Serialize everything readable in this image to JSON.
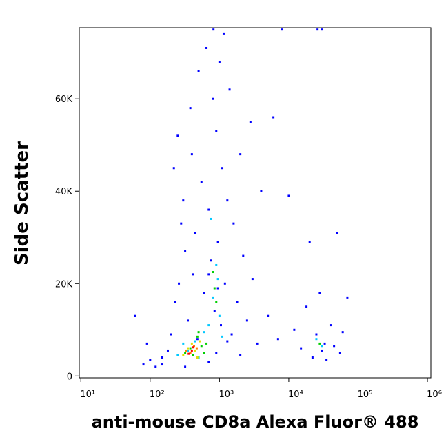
{
  "chart_data": {
    "type": "scatter",
    "x_label": "anti-mouse CD8a Alexa Fluor® 488",
    "y_label": "Side Scatter",
    "xscale": "log",
    "xlim": [
      9.5,
      1120000
    ],
    "xticks": [
      {
        "value": 10,
        "label": "10¹"
      },
      {
        "value": 100,
        "label": "10²"
      },
      {
        "value": 1000,
        "label": "10³"
      },
      {
        "value": 10000,
        "label": "10⁴"
      },
      {
        "value": 100000,
        "label": "10⁵"
      },
      {
        "value": 1000000,
        "label": "10⁶"
      }
    ],
    "ylim": [
      -400,
      75400
    ],
    "yticks": [
      0,
      {
        "value": 20000,
        "label": "20K"
      },
      {
        "value": 40000,
        "label": "40K"
      },
      {
        "value": 60000,
        "label": "60K"
      }
    ],
    "series": [
      {
        "color": "#0000ff",
        "x": [
          80,
          100,
          120,
          60,
          90,
          150,
          200,
          220,
          250,
          230,
          260,
          280,
          300,
          320,
          350,
          380,
          400,
          420,
          450,
          480,
          500,
          550,
          600,
          650,
          700,
          750,
          800,
          820,
          850,
          900,
          950,
          1000,
          1050,
          1100,
          1150,
          1200,
          1300,
          1400,
          1500,
          1600,
          1800,
          2000,
          2200,
          2500,
          2800,
          3000,
          3500,
          4000,
          5000,
          6000,
          7000,
          8000,
          10000,
          12000,
          15000,
          18000,
          20000,
          22000,
          25000,
          28000,
          30000,
          33000,
          35000,
          40000,
          45000,
          50000,
          55000,
          60000,
          70000,
          26000,
          30000,
          150,
          180,
          320,
          700,
          900,
          1300,
          2000,
          700,
          950
        ],
        "y": [
          2500,
          3500,
          2000,
          13000,
          7000,
          4000,
          9000,
          45000,
          52000,
          16000,
          20000,
          33000,
          38000,
          27000,
          12000,
          58000,
          48000,
          22000,
          31000,
          8000,
          66000,
          42000,
          18000,
          71000,
          36000,
          25000,
          60000,
          75000,
          14000,
          53000,
          29000,
          68000,
          11000,
          45000,
          74000,
          20000,
          38000,
          62000,
          9000,
          33000,
          16000,
          48000,
          26000,
          12000,
          55000,
          21000,
          7000,
          40000,
          13000,
          56000,
          8000,
          75000,
          39000,
          10000,
          6000,
          15000,
          29000,
          4000,
          9000,
          18000,
          5500,
          7000,
          3500,
          11000,
          6500,
          31000,
          5000,
          9500,
          17000,
          75000,
          75000,
          2500,
          5500,
          2000,
          3000,
          5000,
          7500,
          4500,
          22000,
          19000
        ]
      },
      {
        "color": "#00c8ff",
        "x": [
          350,
          450,
          600,
          800,
          900,
          1000,
          500,
          300,
          1100,
          700,
          30000,
          25000,
          950,
          750,
          250
        ],
        "y": [
          5500,
          7500,
          9500,
          17000,
          24000,
          13000,
          4000,
          7000,
          8500,
          11000,
          6500,
          8000,
          21000,
          34000,
          4500
        ]
      },
      {
        "color": "#00d000",
        "x": [
          380,
          420,
          480,
          550,
          600,
          850,
          800,
          320,
          650,
          28000,
          500,
          900
        ],
        "y": [
          6000,
          4500,
          8500,
          6500,
          5000,
          19000,
          22500,
          5000,
          7000,
          7000,
          9500,
          16000
        ]
      },
      {
        "color": "#e0e000",
        "x": [
          400,
          450,
          350,
          520,
          300,
          480
        ],
        "y": [
          7000,
          5500,
          6000,
          7500,
          4500,
          4000
        ]
      },
      {
        "color": "#ff8000",
        "x": [
          380,
          430,
          330,
          470
        ],
        "y": [
          5000,
          6500,
          5500,
          6000
        ]
      },
      {
        "color": "#ff0000",
        "x": [
          400,
          360,
          420
        ],
        "y": [
          5500,
          4800,
          6200
        ]
      }
    ]
  }
}
